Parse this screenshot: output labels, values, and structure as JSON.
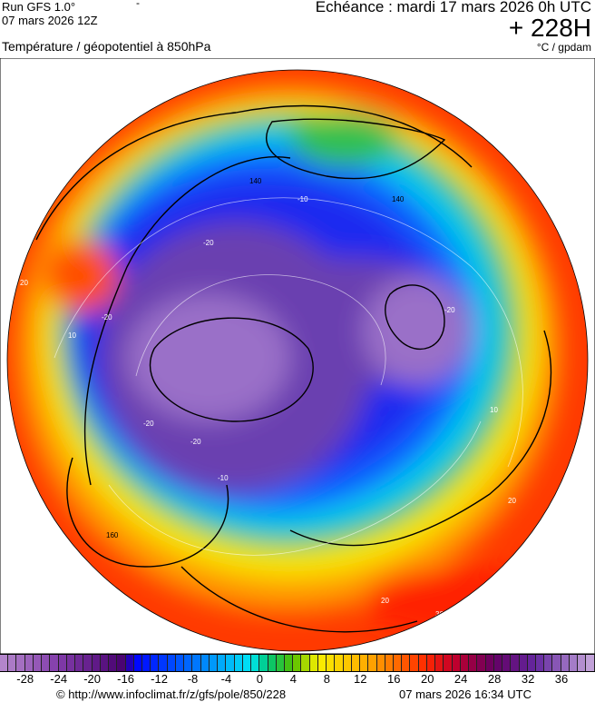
{
  "header": {
    "run": "Run GFS 1.0°",
    "run_date": "07 mars 2026 12Z",
    "dash": "-",
    "title": "Température / géopotentiel à 850hPa",
    "echeance": "Echéance : mardi 17 mars 2026 0h UTC",
    "lead": "+ 228H",
    "units": "°C / gpdam"
  },
  "map": {
    "projection": "polar stereographic (north pole)",
    "contour_labels": [
      "140",
      "140",
      "160",
      "-10",
      "-10",
      "-20",
      "-20",
      "-20",
      "-20",
      "-20",
      "20",
      "20",
      "20",
      "30",
      "10",
      "10"
    ]
  },
  "colorbar": {
    "min": -31,
    "max": 40,
    "ticks": [
      "-28",
      "-24",
      "-20",
      "-16",
      "-12",
      "-8",
      "-4",
      "0",
      "4",
      "8",
      "12",
      "16",
      "20",
      "24",
      "28",
      "32",
      "36"
    ],
    "colors": {
      "purple": "#7a3fa8",
      "deep_purple": "#4b0a7a",
      "blue": "#0020ff",
      "cyan": "#00e0f0",
      "green": "#10c060",
      "yellow": "#f8f000",
      "orange": "#ffa000",
      "red": "#ff1000",
      "crimson": "#b00040"
    }
  },
  "footer": {
    "credit": "© http://www.infoclimat.fr/z/gfs/pole/850/228",
    "generated": "07 mars 2026 16:34 UTC"
  }
}
